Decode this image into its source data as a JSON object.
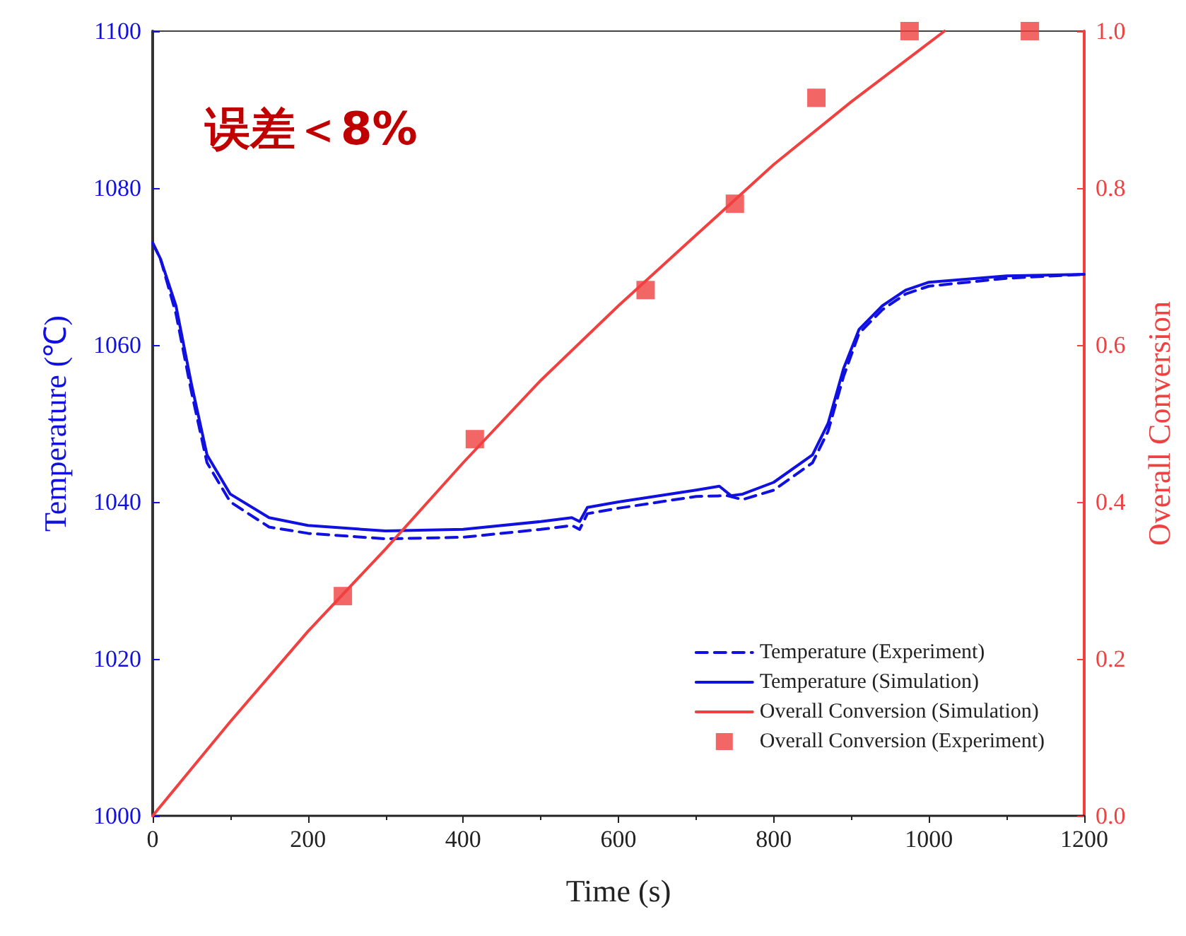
{
  "chart_data": {
    "type": "line",
    "xlabel": "Time (s)",
    "ylabel": "Temperature (℃)",
    "y2label": "Overall Conversion",
    "annotations": [
      "误差＜8%"
    ],
    "xlim": [
      0,
      1200
    ],
    "xticks": [
      0,
      200,
      400,
      600,
      800,
      1000,
      1200
    ],
    "ylim": [
      1000,
      1100
    ],
    "yticks": [
      1000,
      1020,
      1040,
      1060,
      1080,
      1100
    ],
    "y2lim": [
      0,
      1.0
    ],
    "y2ticks": [
      {
        "value": 0,
        "label": "0.0"
      },
      0.2,
      0.4,
      0.6,
      0.8,
      {
        "value": 1,
        "label": "1.0"
      }
    ],
    "grid": false,
    "legend": "bottom right",
    "series": [
      {
        "name": "Temperature (Experiment)",
        "color": "#1010e0",
        "line_style": "dashed",
        "marker": "none",
        "x": [
          0,
          10,
          30,
          50,
          70,
          100,
          150,
          200,
          300,
          400,
          500,
          540,
          550,
          560,
          600,
          700,
          740,
          760,
          800,
          850,
          870,
          890,
          910,
          940,
          970,
          1000,
          1100,
          1200
        ],
        "values": [
          1073,
          1071,
          1064,
          1054,
          1045,
          1040,
          1036.8,
          1036,
          1035.3,
          1035.5,
          1036.5,
          1037,
          1036.5,
          1038.5,
          1039.2,
          1040.7,
          1040.8,
          1040.3,
          1041.5,
          1045,
          1049,
          1056,
          1061.5,
          1064.5,
          1066.5,
          1067.5,
          1068.5,
          1069
        ]
      },
      {
        "name": "Temperature (Simulation)",
        "color": "#1010e0",
        "line_style": "solid",
        "marker": "none",
        "x": [
          0,
          10,
          30,
          50,
          70,
          100,
          150,
          200,
          300,
          400,
          500,
          540,
          550,
          560,
          600,
          700,
          730,
          745,
          760,
          800,
          850,
          870,
          890,
          910,
          940,
          970,
          1000,
          1100,
          1200
        ],
        "values": [
          1073,
          1071,
          1065,
          1055,
          1046,
          1041,
          1038,
          1037,
          1036.3,
          1036.5,
          1037.5,
          1038,
          1037.5,
          1039.3,
          1040,
          1041.5,
          1042,
          1040.8,
          1041,
          1042.5,
          1046,
          1050,
          1057,
          1062,
          1065,
          1067,
          1068,
          1068.8,
          1069
        ]
      },
      {
        "name": "Overall Conversion (Simulation)",
        "color": "#f04040",
        "axis": "y2",
        "line_style": "solid",
        "marker": "none",
        "x": [
          0,
          100,
          200,
          300,
          400,
          500,
          600,
          700,
          800,
          900,
          1000,
          1020
        ],
        "values": [
          0,
          0.12,
          0.235,
          0.34,
          0.45,
          0.555,
          0.65,
          0.74,
          0.83,
          0.91,
          0.985,
          1.0
        ]
      },
      {
        "name": "Overall Conversion (Experiment)",
        "type": "scatter",
        "color": "#f04040",
        "axis": "y2",
        "marker": "square",
        "x": [
          245,
          415,
          635,
          750,
          855,
          975,
          1130
        ],
        "values": [
          0.28,
          0.48,
          0.67,
          0.78,
          0.915,
          1.0,
          1.0
        ]
      }
    ]
  }
}
